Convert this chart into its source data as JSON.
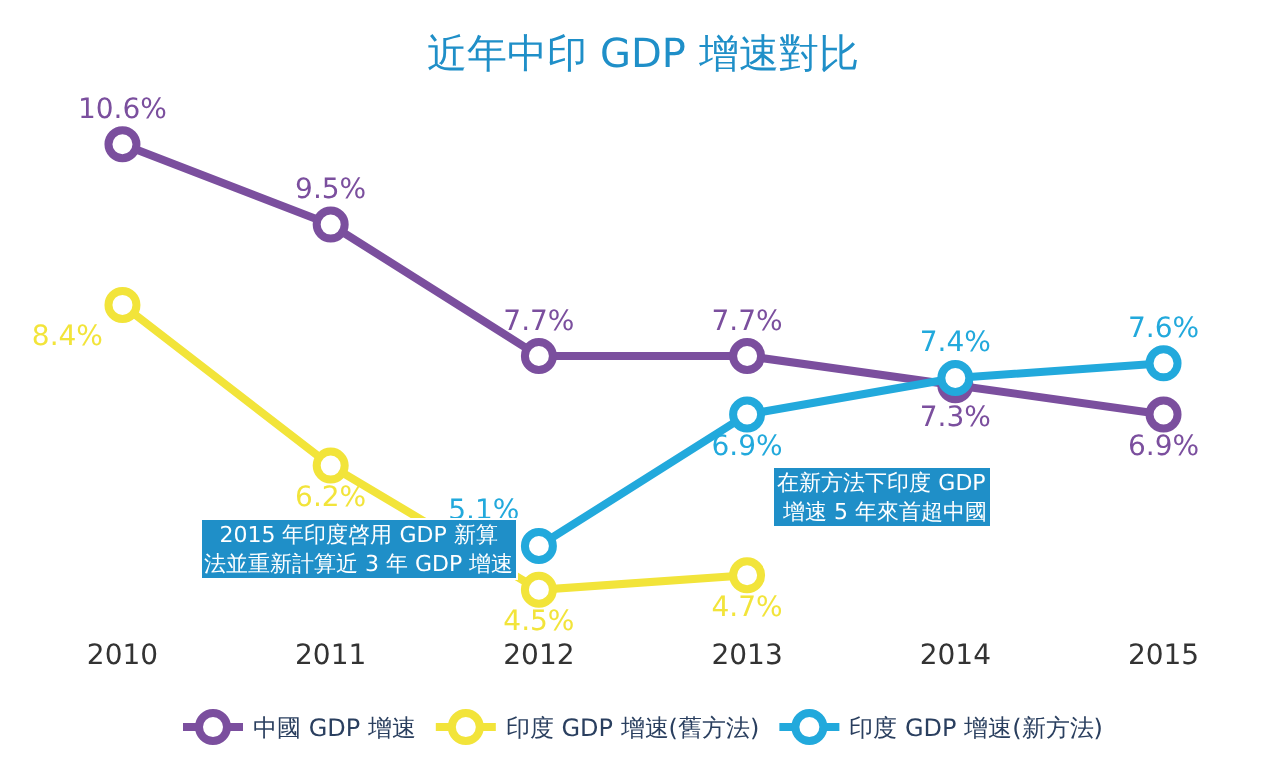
{
  "chart_data": {
    "type": "line",
    "title": "近年中印 GDP 增速對比",
    "categories": [
      "2010",
      "2011",
      "2012",
      "2013",
      "2014",
      "2015"
    ],
    "series": [
      {
        "name": "中國 GDP 增速",
        "color": "#7b4f9e",
        "values": [
          10.6,
          9.5,
          7.7,
          7.7,
          7.3,
          6.9
        ],
        "value_labels": [
          "10.6%",
          "9.5%",
          "7.7%",
          "7.7%",
          "7.3%",
          "6.9%"
        ]
      },
      {
        "name": "印度 GDP 增速(舊方法)",
        "color": "#f2e43a",
        "values": [
          8.4,
          6.2,
          4.5,
          4.7,
          null,
          null
        ],
        "value_labels": [
          "8.4%",
          "6.2%",
          "4.5%",
          "4.7%",
          null,
          null
        ]
      },
      {
        "name": "印度 GDP 增速(新方法)",
        "color": "#22a9dc",
        "values": [
          null,
          null,
          5.1,
          6.9,
          7.4,
          7.6
        ],
        "value_labels": [
          null,
          null,
          "5.1%",
          "6.9%",
          "7.4%",
          "7.6%"
        ]
      }
    ],
    "marker": "circle",
    "legend": "bottom",
    "annotations": [
      "2015 年印度啓用 GDP 新算法並重新計算近 3 年 GDP 增速",
      "在新方法下印度 GDP 增速 5 年來首超中國"
    ]
  }
}
